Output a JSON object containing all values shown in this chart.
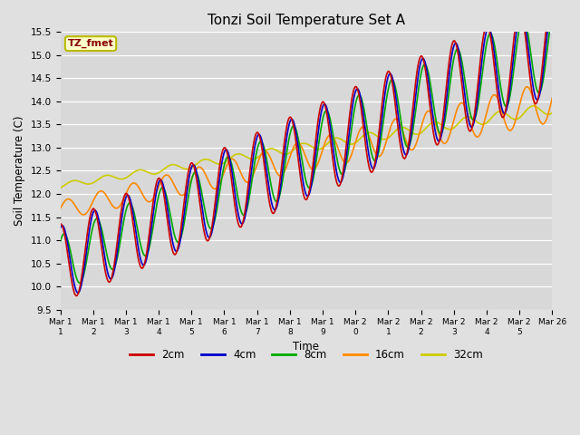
{
  "title": "Tonzi Soil Temperature Set A",
  "xlabel": "Time",
  "ylabel": "Soil Temperature (C)",
  "ylim": [
    9.5,
    15.5
  ],
  "fig_bg_color": "#e0e0e0",
  "plot_bg_color": "#d8d8d8",
  "legend_label": "TZ_fmet",
  "legend_bg": "#ffffcc",
  "legend_border": "#bbbb00",
  "series": {
    "2cm": {
      "color": "#cc0000",
      "lw": 1.2
    },
    "4cm": {
      "color": "#0000cc",
      "lw": 1.2
    },
    "8cm": {
      "color": "#00aa00",
      "lw": 1.2
    },
    "16cm": {
      "color": "#ff8800",
      "lw": 1.2
    },
    "32cm": {
      "color": "#cccc00",
      "lw": 1.2
    }
  },
  "xtick_labels": [
    "Mar 1\n1",
    "Mar 1\n2",
    "Mar 1\n3",
    "Mar 1\n4",
    "Mar 1\n5",
    "Mar 1\n6",
    "Mar 1\n7",
    "Mar 1\n8",
    "Mar 1\n9",
    "Mar 2\n0",
    "Mar 2\n1",
    "Mar 2\n2",
    "Mar 2\n3",
    "Mar 2\n4",
    "Mar 2\n5",
    "Mar 26"
  ]
}
